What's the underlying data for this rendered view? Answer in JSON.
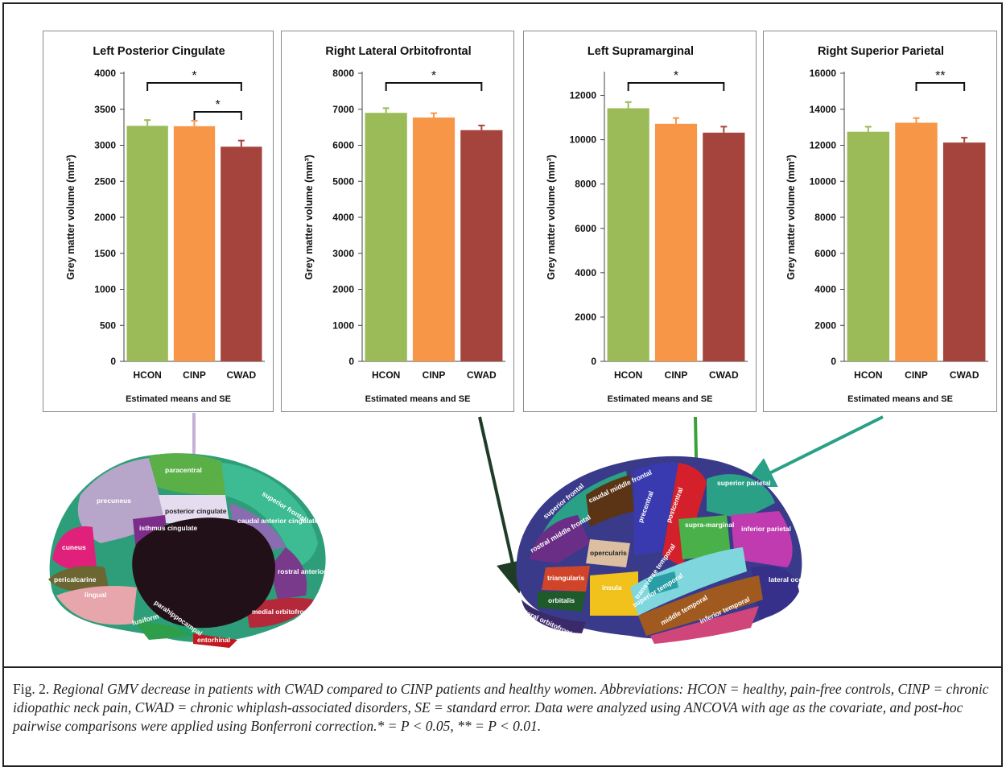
{
  "chart_data": [
    {
      "type": "bar",
      "title": "Left Posterior Cingulate",
      "categories": [
        "HCON",
        "CINP",
        "CWAD"
      ],
      "values": [
        3270,
        3265,
        2980
      ],
      "errors": [
        80,
        75,
        85
      ],
      "ylabel": "Grey matter volume (mm³)",
      "xlabel": "Estimated means and SE",
      "ylim": [
        0,
        4000
      ],
      "yticks": [
        0,
        500,
        1000,
        1500,
        2000,
        2500,
        3000,
        3500,
        4000
      ],
      "significance": [
        {
          "from": 0,
          "to": 2,
          "label": "*"
        },
        {
          "from": 1,
          "to": 2,
          "label": "*"
        }
      ]
    },
    {
      "type": "bar",
      "title": "Right Lateral Orbitofrontal",
      "categories": [
        "HCON",
        "CINP",
        "CWAD"
      ],
      "values": [
        6900,
        6770,
        6420
      ],
      "errors": [
        130,
        120,
        130
      ],
      "ylabel": "Grey matter volume (mm³)",
      "xlabel": "Estimated means and SE",
      "ylim": [
        0,
        8000
      ],
      "yticks": [
        0,
        1000,
        2000,
        3000,
        4000,
        5000,
        6000,
        7000,
        8000
      ],
      "significance": [
        {
          "from": 0,
          "to": 2,
          "label": "*"
        }
      ]
    },
    {
      "type": "bar",
      "title": "Left Supramarginal",
      "categories": [
        "HCON",
        "CINP",
        "CWAD"
      ],
      "values": [
        11420,
        10720,
        10320
      ],
      "errors": [
        280,
        260,
        270
      ],
      "ylabel": "Grey matter volume (mm³)",
      "xlabel": "Estimated means and SE",
      "ylim": [
        0,
        13000
      ],
      "yticks": [
        0,
        2000,
        4000,
        6000,
        8000,
        10000,
        12000
      ],
      "significance": [
        {
          "from": 0,
          "to": 2,
          "label": "*"
        }
      ]
    },
    {
      "type": "bar",
      "title": "Right Superior Parietal",
      "categories": [
        "HCON",
        "CINP",
        "CWAD"
      ],
      "values": [
        12750,
        13250,
        12150
      ],
      "errors": [
        280,
        260,
        270
      ],
      "ylabel": "Grey matter volume (mm³)",
      "xlabel": "Estimated means and SE",
      "ylim": [
        0,
        16000
      ],
      "yticks": [
        0,
        2000,
        4000,
        6000,
        8000,
        10000,
        12000,
        14000,
        16000
      ],
      "significance": [
        {
          "from": 1,
          "to": 2,
          "label": "**"
        }
      ]
    }
  ],
  "colors": {
    "HCON": "#9bbb59",
    "CINP": "#f79646",
    "CWAD": "#a5443c",
    "arrow_cingulate": "#c7b0d8",
    "arrow_orbitofrontal": "#1f3d26",
    "arrow_supramarginal": "#3aa03a",
    "arrow_superior_parietal": "#2aa087"
  },
  "brain_medial": {
    "regions": [
      "paracentral",
      "precuneus",
      "superior frontal",
      "posterior cingulate",
      "isthmus cingulate",
      "caudal anterior cingulate",
      "cuneus",
      "pericalcarine",
      "rostral anterior cingulate",
      "lingual",
      "medial orbitofrontal",
      "parahippocampal",
      "fusiform",
      "entorhinal"
    ]
  },
  "brain_lateral": {
    "regions": [
      "superior frontal",
      "caudal middle frontal",
      "precentral",
      "postcentral",
      "superior parietal",
      "supra-marginal",
      "rostral middle frontal",
      "opercularis",
      "inferior parietal",
      "triangularis",
      "insula",
      "transverse temporal",
      "superior temporal",
      "lateral occipital",
      "orbitalis",
      "middle temporal",
      "inferior temporal",
      "lateral orbitofrontal"
    ]
  },
  "caption": {
    "fig_label": "Fig. 2.",
    "text": "Regional GMV decrease in patients with CWAD compared to CINP patients and healthy women. Abbreviations: HCON = healthy, pain-free controls, CINP = chronic idiopathic neck pain, CWAD = chronic whiplash-associated disorders, SE = standard error. Data were analyzed using ANCOVA with age as the covariate, and post-hoc pairwise comparisons were applied using Bonferroni correction.* = P < 0.05, ** = P < 0.01."
  }
}
